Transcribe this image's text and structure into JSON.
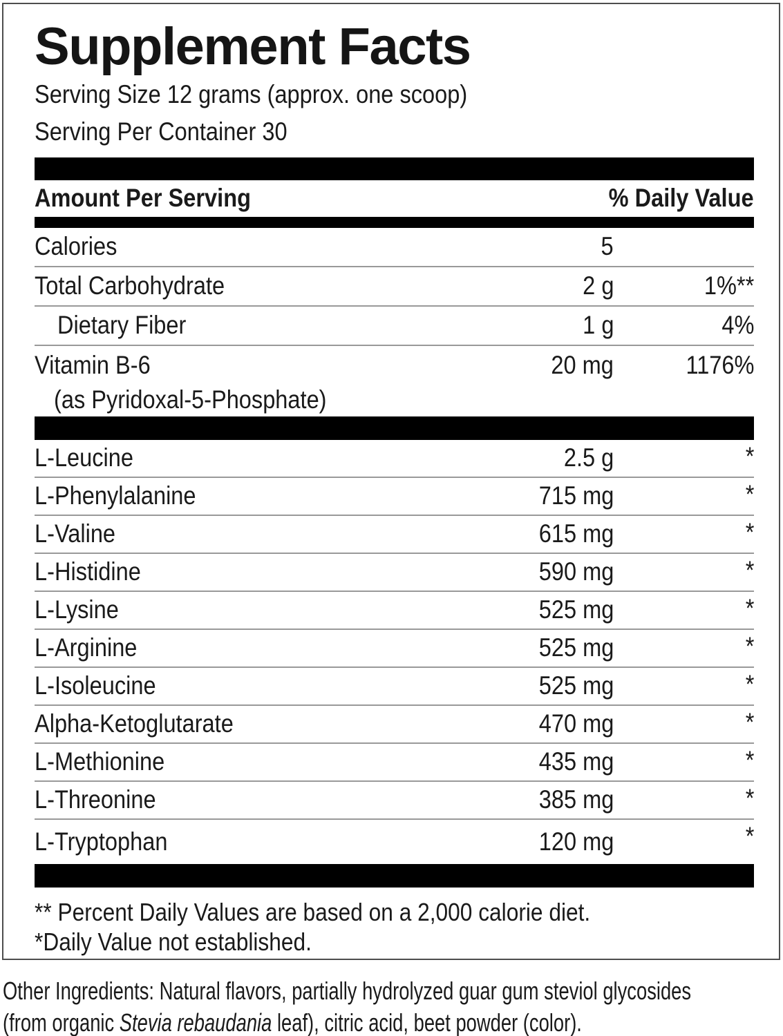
{
  "colors": {
    "bar": "#000000",
    "separator": "#999999",
    "panel_border": "#4d4d4d",
    "text": "#1a1a1a"
  },
  "panel": {
    "title": "Supplement Facts",
    "serving_size": "Serving Size 12 grams (approx. one scoop)",
    "servings_per_container": "Serving Per Container 30",
    "column_headers": {
      "amount": "Amount Per Serving",
      "daily_value": "% Daily Value"
    },
    "nutrient_rows": [
      {
        "label": "Calories",
        "amount": "5",
        "dv": "",
        "indent": false
      },
      {
        "label": "Total Carbohydrate",
        "amount": "2 g",
        "dv": "1%**",
        "indent": false
      },
      {
        "label": "Dietary Fiber",
        "amount": "1 g",
        "dv": "4%",
        "indent": true
      },
      {
        "label": "Vitamin B-6",
        "sublabel": "(as Pyridoxal-5-Phosphate)",
        "amount": "20 mg",
        "dv": "1176%",
        "indent": false
      }
    ],
    "amino_rows": [
      {
        "label": "L-Leucine",
        "amount": "2.5 g",
        "dv": "*"
      },
      {
        "label": "L-Phenylalanine",
        "amount": "715 mg",
        "dv": "*"
      },
      {
        "label": "L-Valine",
        "amount": "615 mg",
        "dv": "*"
      },
      {
        "label": "L-Histidine",
        "amount": "590 mg",
        "dv": "*"
      },
      {
        "label": "L-Lysine",
        "amount": "525 mg",
        "dv": "*"
      },
      {
        "label": "L-Arginine",
        "amount": "525 mg",
        "dv": "*"
      },
      {
        "label": "L-Isoleucine",
        "amount": "525 mg",
        "dv": "*"
      },
      {
        "label": "Alpha-Ketoglutarate",
        "amount": "470 mg",
        "dv": "*"
      },
      {
        "label": "L-Methionine",
        "amount": "435 mg",
        "dv": "*"
      },
      {
        "label": "L-Threonine",
        "amount": "385 mg",
        "dv": "*"
      },
      {
        "label": "L-Tryptophan",
        "amount": "120 mg",
        "dv": "*"
      }
    ],
    "footnotes": [
      "** Percent Daily Values are based on a 2,000 calorie diet.",
      "*Daily Value not established."
    ]
  },
  "other_ingredients": {
    "line1": "Other Ingredients: Natural flavors, partially hydrolyzed guar gum steviol glycosides",
    "line2_before_italic": "(from organic ",
    "line2_italic": "Stevia rebaudania",
    "line2_after_italic": " leaf), citric acid, beet powder (color)."
  }
}
